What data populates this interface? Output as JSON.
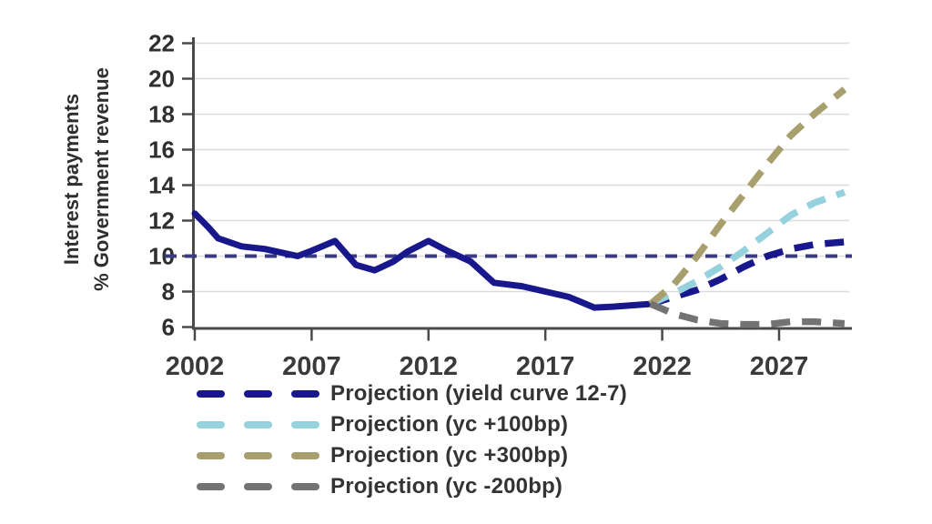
{
  "figure": {
    "background": "#ffffff",
    "axis_color": "#4a4a4a",
    "grid_color": "#dcdcdc",
    "tick_text_color": "#2f2f2f"
  },
  "chart_data": {
    "type": "line",
    "title": "",
    "xlabel": "",
    "ylabel_lines": [
      "Interest payments",
      "% Government revenue"
    ],
    "xlim": [
      2002,
      2030
    ],
    "ylim": [
      6,
      22
    ],
    "yticks": [
      6,
      8,
      10,
      12,
      14,
      16,
      18,
      20,
      22
    ],
    "xticks": [
      2002,
      2007,
      2012,
      2017,
      2022,
      2027
    ],
    "grid": "horizontal",
    "legend_position": "bottom-left",
    "reference_line": {
      "value": 10,
      "style": "dashed",
      "color": "#3a3a85"
    },
    "series": [
      {
        "key": "historical",
        "name": "",
        "legend": false,
        "style": "solid",
        "color": "#18188c",
        "x": [
          2002,
          2002.6,
          2003,
          2004,
          2005,
          2006.4,
          2007,
          2008,
          2008.9,
          2009.7,
          2010.5,
          2011.1,
          2012,
          2012.8,
          2013.8,
          2014.8,
          2016,
          2017,
          2018,
          2019.1,
          2019.9,
          2021.5
        ],
        "y": [
          12.4,
          11.6,
          11.0,
          10.55,
          10.4,
          10.0,
          10.3,
          10.85,
          9.5,
          9.2,
          9.7,
          10.25,
          10.85,
          10.3,
          9.7,
          8.5,
          8.3,
          8.0,
          7.7,
          7.1,
          7.15,
          7.3
        ]
      },
      {
        "key": "projection-yield-curve-12-7",
        "name": "Projection (yield curve 12-7)",
        "legend": true,
        "style": "dashed",
        "color": "#18188c",
        "x": [
          2021.5,
          2022.5,
          2023.5,
          2024.5,
          2025.5,
          2026.5,
          2027.5,
          2028.5,
          2029.8
        ],
        "y": [
          7.3,
          7.7,
          8.1,
          8.7,
          9.4,
          10.0,
          10.4,
          10.65,
          10.8
        ]
      },
      {
        "key": "projection-yc-plus-100bp",
        "name": "Projection (yc +100bp)",
        "legend": true,
        "style": "dashed",
        "color": "#96d1de",
        "x": [
          2021.5,
          2022.5,
          2023.5,
          2024.5,
          2025.5,
          2026.5,
          2027.5,
          2028.5,
          2029.8
        ],
        "y": [
          7.3,
          7.9,
          8.6,
          9.4,
          10.3,
          11.3,
          12.3,
          13.0,
          13.6
        ]
      },
      {
        "key": "projection-yc-plus-300bp",
        "name": "Projection (yc +300bp)",
        "legend": true,
        "style": "dashed",
        "color": "#a89f6e",
        "x": [
          2021.5,
          2022.5,
          2023.5,
          2024.5,
          2025.5,
          2026.5,
          2027.5,
          2028.5,
          2029.8
        ],
        "y": [
          7.3,
          8.4,
          10.0,
          11.8,
          13.5,
          15.2,
          16.8,
          18.0,
          19.4
        ]
      },
      {
        "key": "projection-yc-minus-200bp",
        "name": "Projection (yc -200bp)",
        "legend": true,
        "style": "dashed",
        "color": "#737373",
        "x": [
          2021.5,
          2022.5,
          2023.5,
          2024.5,
          2025.5,
          2026.5,
          2027.5,
          2028.5,
          2029.8
        ],
        "y": [
          7.3,
          6.75,
          6.4,
          6.2,
          6.15,
          6.15,
          6.3,
          6.3,
          6.2
        ]
      }
    ]
  }
}
